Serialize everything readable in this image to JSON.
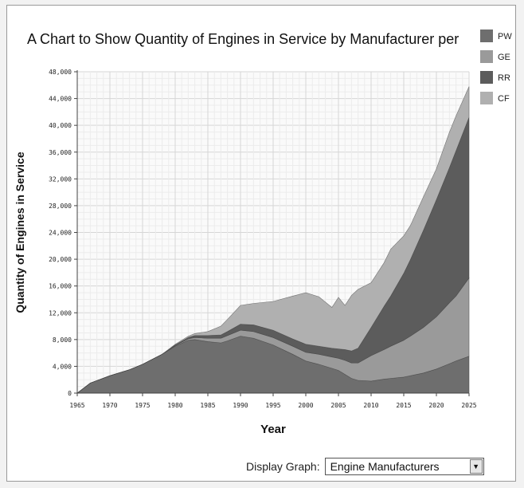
{
  "chart_data": {
    "type": "area",
    "stacked": true,
    "title": "A Chart to Show Quantity of Engines in Service by Manufacturer per",
    "xlabel": "Year",
    "ylabel": "Quantity of Engines in Service",
    "xlim": [
      1965,
      2025
    ],
    "ylim": [
      0,
      48000
    ],
    "xticks": [
      "1965",
      "1970",
      "1975",
      "1980",
      "1985",
      "1990",
      "1995",
      "2000",
      "2005",
      "2010",
      "2015",
      "2020",
      "2025"
    ],
    "yticks": [
      "0",
      "4,000",
      "8,000",
      "12,000",
      "16,000",
      "20,000",
      "24,000",
      "28,000",
      "32,000",
      "36,000",
      "40,000",
      "44,000",
      "48,000"
    ],
    "grid": true,
    "legend_position": "top-right",
    "x": [
      1965,
      1967,
      1970,
      1973,
      1975,
      1978,
      1980,
      1982,
      1983,
      1985,
      1987,
      1988,
      1990,
      1992,
      1995,
      1998,
      2000,
      2002,
      2004,
      2005,
      2006,
      2007,
      2008,
      2010,
      2012,
      2013,
      2015,
      2016,
      2018,
      2020,
      2022,
      2023,
      2025
    ],
    "series": [
      {
        "name": "PW",
        "color": "#6e6e6e",
        "values": [
          0,
          1500,
          2600,
          3500,
          4300,
          5800,
          7000,
          7900,
          8000,
          7700,
          7500,
          7800,
          8500,
          8200,
          7200,
          5800,
          4800,
          4300,
          3700,
          3400,
          2800,
          2200,
          1900,
          1800,
          2100,
          2200,
          2400,
          2600,
          3000,
          3600,
          4400,
          4800,
          5500
        ]
      },
      {
        "name": "GE",
        "color": "#9a9a9a",
        "values": [
          0,
          0,
          0,
          0,
          0,
          0,
          100,
          200,
          300,
          500,
          700,
          800,
          900,
          1000,
          1100,
          1200,
          1300,
          1500,
          1700,
          1800,
          2100,
          2300,
          2600,
          3800,
          4400,
          4800,
          5500,
          5900,
          6800,
          7800,
          9100,
          9700,
          11700
        ]
      },
      {
        "name": "RR",
        "color": "#5c5c5c",
        "values": [
          0,
          0,
          0,
          0,
          0,
          0,
          100,
          200,
          300,
          400,
          500,
          600,
          900,
          1000,
          1100,
          1100,
          1200,
          1200,
          1300,
          1400,
          1600,
          1800,
          2200,
          4200,
          6500,
          7500,
          10000,
          11400,
          14500,
          17500,
          20200,
          21700,
          24000
        ]
      },
      {
        "name": "CF",
        "color": "#b0b0b0",
        "values": [
          0,
          0,
          0,
          0,
          0,
          0,
          100,
          200,
          300,
          600,
          1300,
          1800,
          2800,
          3200,
          4300,
          6400,
          7700,
          7400,
          6100,
          7700,
          6600,
          8300,
          8800,
          6700,
          6500,
          7000,
          5600,
          5100,
          5000,
          4600,
          5300,
          5200,
          4600
        ]
      }
    ]
  },
  "controls": {
    "display_label": "Display Graph:",
    "selected": "Engine Manufacturers"
  }
}
